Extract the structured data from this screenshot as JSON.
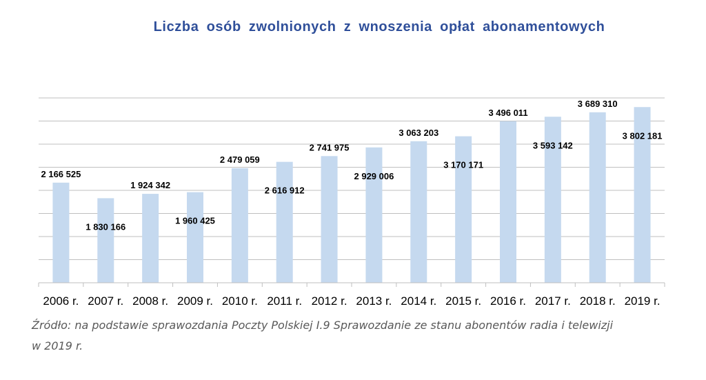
{
  "chart_data": {
    "type": "bar",
    "title": "Liczba osób zwolnionych z wnoszenia opłat abonamentowych",
    "categories": [
      "2006 r.",
      "2007 r.",
      "2008 r.",
      "2009 r.",
      "2010 r.",
      "2011 r.",
      "2012 r.",
      "2013 r.",
      "2014 r.",
      "2015 r.",
      "2016 r.",
      "2017 r.",
      "2018 r.",
      "2019 r."
    ],
    "values": [
      2166525,
      1830166,
      1924342,
      1960425,
      2479059,
      2616912,
      2741975,
      2929006,
      3063203,
      3170171,
      3496011,
      3593142,
      3689310,
      3802181
    ],
    "value_labels": [
      "2 166 525",
      "1 830 166",
      "1 924 342",
      "1 960 425",
      "2 479 059",
      "2 616 912",
      "2 741 975",
      "2 929 006",
      "3 063 203",
      "3 170 171",
      "3 496 011",
      "3 593 142",
      "3 689 310",
      "3 802 181"
    ],
    "ylim": [
      0,
      4000000
    ],
    "grid": true,
    "y_axis_ticks_shown": false,
    "bar_color": "#c5d9ef",
    "title_color": "#2f4f9a",
    "source_lines": [
      "Źródło: na podstawie sprawozdania Poczty Polskiej I.9 Sprawozdanie ze stanu abonentów radia i telewizji",
      "w 2019 r."
    ]
  }
}
